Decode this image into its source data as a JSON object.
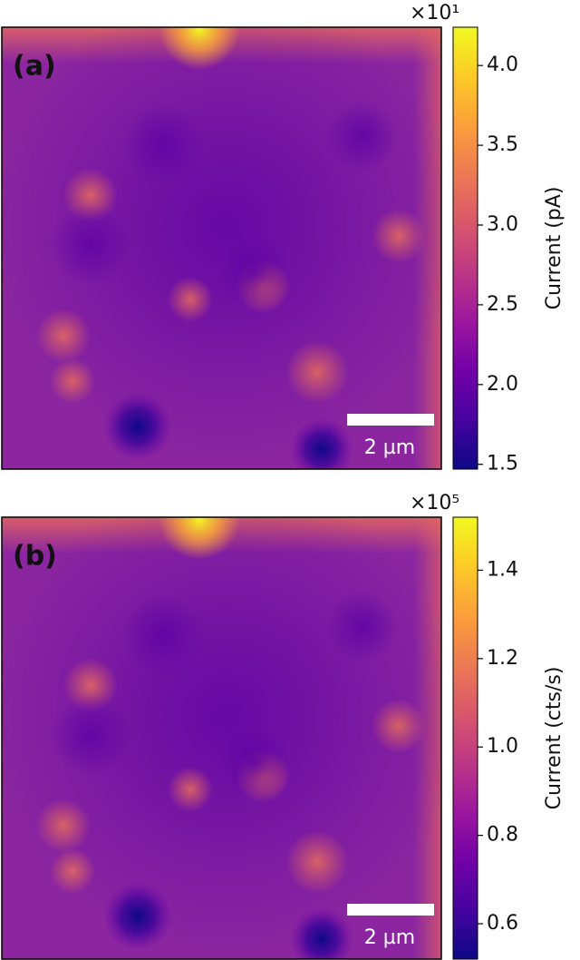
{
  "chart_data": [
    {
      "type": "heatmap",
      "panel_label": "(a)",
      "colormap": "plasma",
      "colorbar": {
        "label": "Current (pA)",
        "offset_text": "×10¹",
        "lim": [
          1.47,
          4.24
        ],
        "ticks": [
          1.5,
          {
            "value": 2,
            "label": "2.0"
          },
          2.5,
          {
            "value": 3,
            "label": "3.0"
          },
          3.5,
          {
            "value": 4,
            "label": "4.0"
          }
        ]
      },
      "scale_bar": "2 µm"
    },
    {
      "type": "heatmap",
      "panel_label": "(b)",
      "colormap": "plasma",
      "colorbar": {
        "label": "Current (cts/s)",
        "offset_text": "×10⁵",
        "lim": [
          0.52,
          1.52
        ],
        "ticks": [
          0.6,
          0.8,
          {
            "value": 1,
            "label": "1.0"
          },
          1.2,
          1.4
        ]
      },
      "scale_bar": "2 µm"
    }
  ]
}
